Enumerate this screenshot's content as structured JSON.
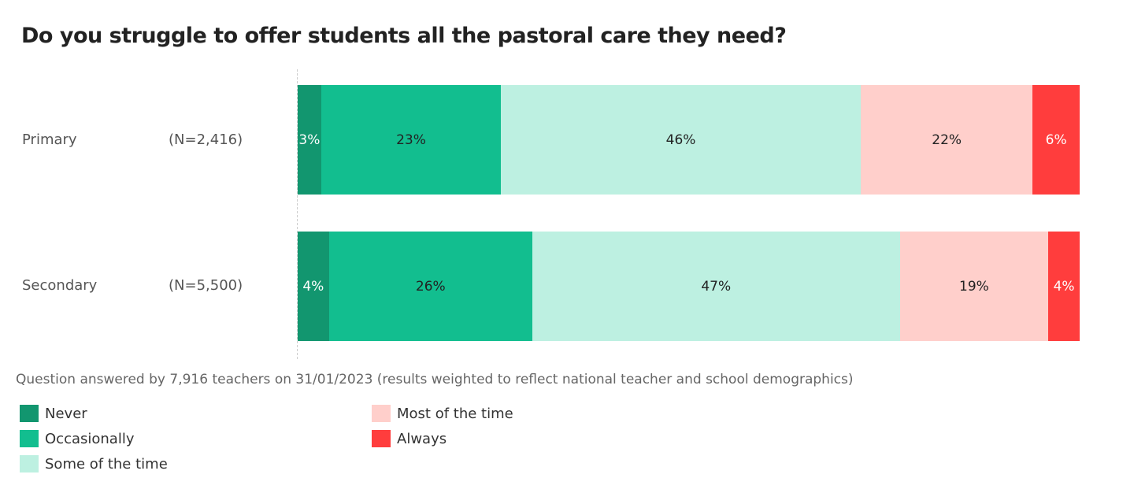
{
  "chart_data": {
    "type": "bar",
    "orientation": "horizontal-stacked-100",
    "title": "Do you struggle to offer students all the pastoral care they need?",
    "categories": [
      "Primary",
      "Secondary"
    ],
    "sample_sizes": [
      "(N=2,416)",
      "(N=5,500)"
    ],
    "series": [
      {
        "name": "Never",
        "color": "#12966f",
        "label_color": "#ffffff",
        "values": [
          3,
          4
        ]
      },
      {
        "name": "Occasionally",
        "color": "#12be8f",
        "label_color": "#222222",
        "values": [
          23,
          26
        ]
      },
      {
        "name": "Some of the time",
        "color": "#bdf0e1",
        "label_color": "#222222",
        "values": [
          46,
          47
        ]
      },
      {
        "name": "Most of the time",
        "color": "#ffcfcb",
        "label_color": "#222222",
        "values": [
          22,
          19
        ]
      },
      {
        "name": "Always",
        "color": "#ff3d3d",
        "label_color": "#ffffff",
        "values": [
          6,
          4
        ]
      }
    ],
    "xlim": [
      0,
      100
    ],
    "legend_position": "bottom-left",
    "note": "Question answered by 7,916 teachers on 31/01/2023 (results weighted to reflect national teacher and school demographics)"
  }
}
